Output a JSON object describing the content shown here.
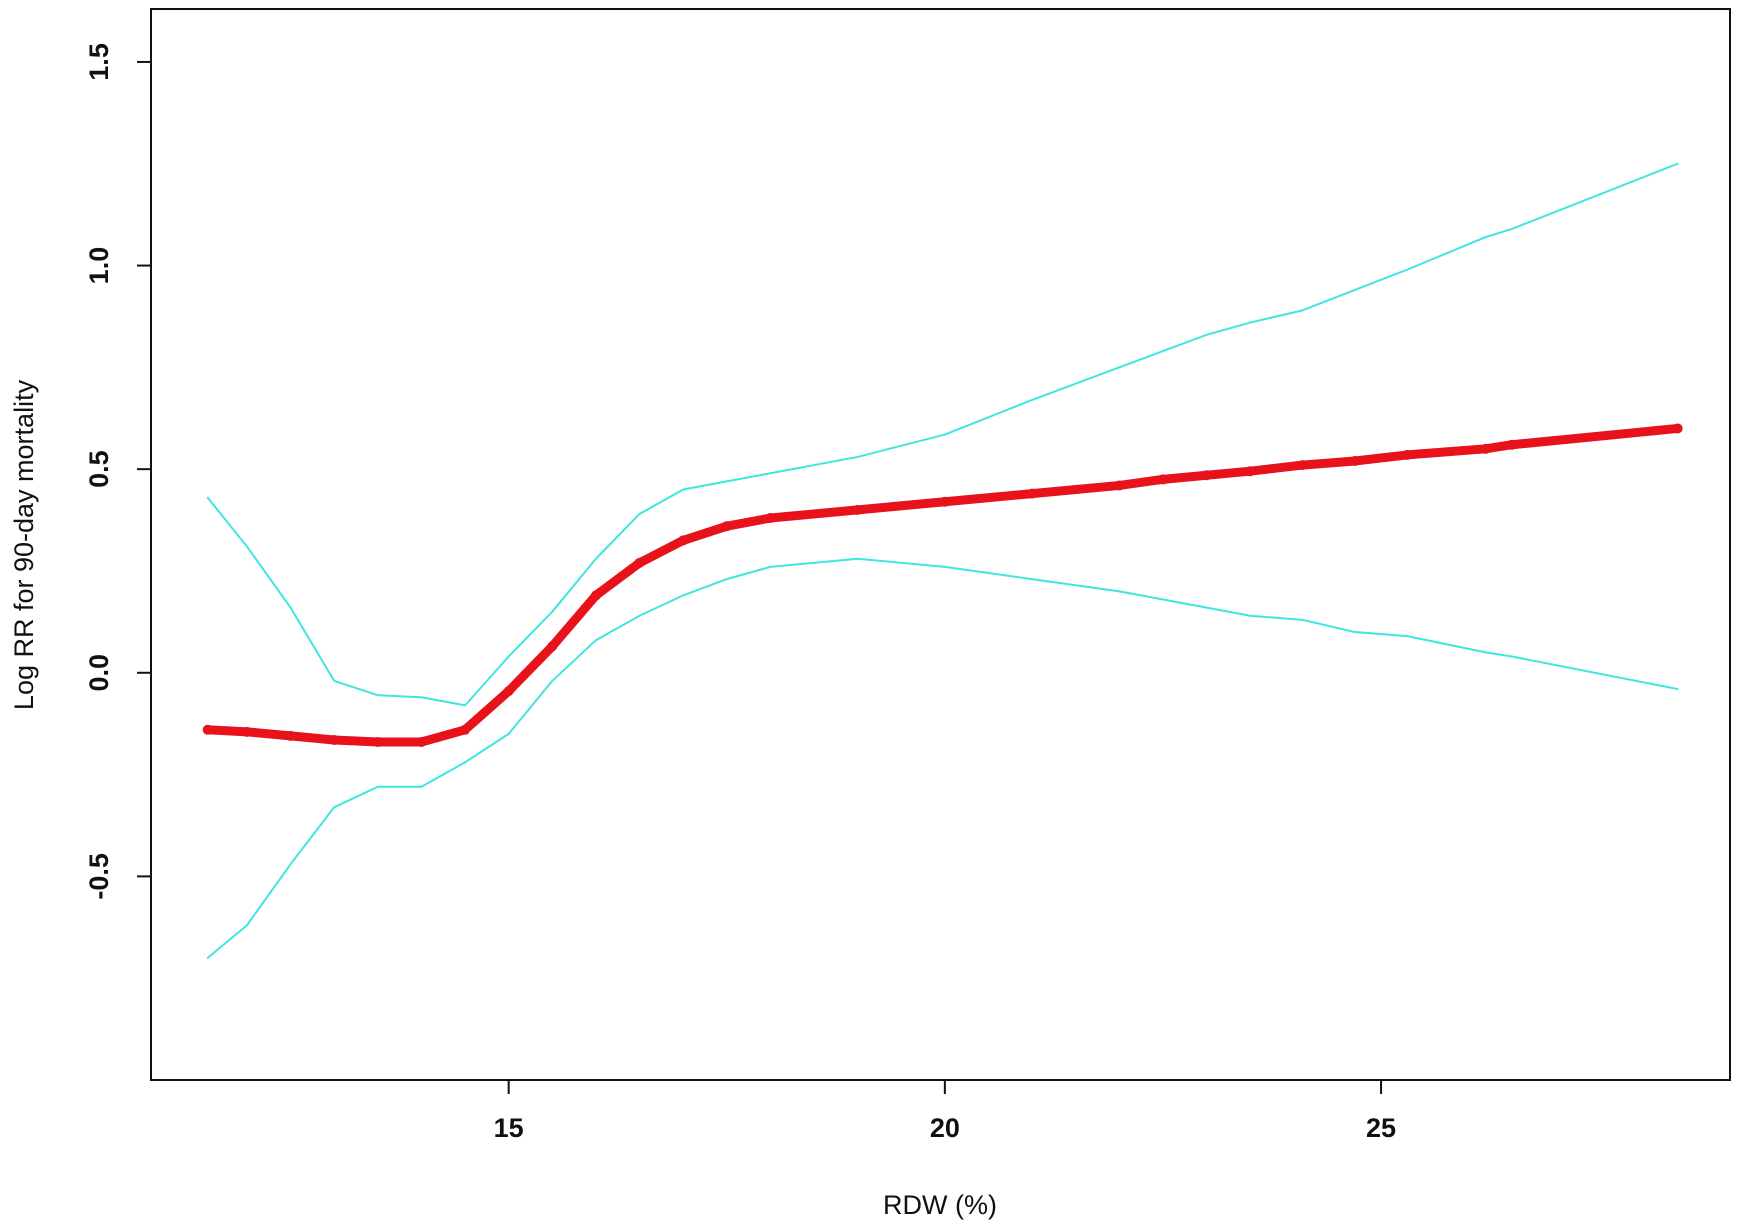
{
  "chart_data": {
    "type": "line",
    "x_label": "RDW (%)",
    "y_label": "Log RR for 90-day mortality",
    "x": [
      11.55,
      12,
      12.5,
      13,
      13.5,
      14,
      14.5,
      15,
      15.5,
      16,
      16.5,
      17,
      17.5,
      18,
      19,
      20,
      21,
      22,
      22.5,
      23,
      23.5,
      24.1,
      24.7,
      25.3,
      26.2,
      26.5,
      28.4
    ],
    "series": [
      {
        "color": "#e8121b",
        "line_width": 9,
        "marker_radius": 5,
        "values": [
          -0.14,
          -0.145,
          -0.155,
          -0.165,
          -0.17,
          -0.17,
          -0.14,
          -0.045,
          0.065,
          0.19,
          0.27,
          0.325,
          0.36,
          0.38,
          0.4,
          0.42,
          0.44,
          0.46,
          0.475,
          0.485,
          0.495,
          0.51,
          0.52,
          0.535,
          0.55,
          0.56,
          0.6
        ]
      },
      {
        "color": "#3fe6df",
        "line_width": 2,
        "marker_radius": 0,
        "values": [
          0.43,
          0.31,
          0.16,
          -0.02,
          -0.055,
          -0.06,
          -0.08,
          0.04,
          0.15,
          0.28,
          0.39,
          0.45,
          0.47,
          0.49,
          0.53,
          0.585,
          0.67,
          0.75,
          0.79,
          0.83,
          0.86,
          0.89,
          0.94,
          0.99,
          1.07,
          1.09,
          1.25
        ]
      },
      {
        "color": "#3fe6df",
        "line_width": 2,
        "marker_radius": 0,
        "values": [
          -0.7,
          -0.62,
          -0.47,
          -0.33,
          -0.28,
          -0.28,
          -0.22,
          -0.15,
          -0.02,
          0.08,
          0.14,
          0.19,
          0.23,
          0.26,
          0.28,
          0.26,
          0.23,
          0.2,
          0.18,
          0.16,
          0.14,
          0.13,
          0.1,
          0.09,
          0.05,
          0.04,
          -0.04
        ]
      }
    ],
    "xlim": [
      10.9,
      29.0
    ],
    "ylim": [
      -1.0,
      1.63
    ],
    "xticks": [
      15,
      20,
      25
    ],
    "yticks": [
      -0.5,
      {
        "value": 0,
        "label": "0.0"
      },
      0.5,
      {
        "value": 1,
        "label": "1.0"
      },
      1.5
    ]
  }
}
